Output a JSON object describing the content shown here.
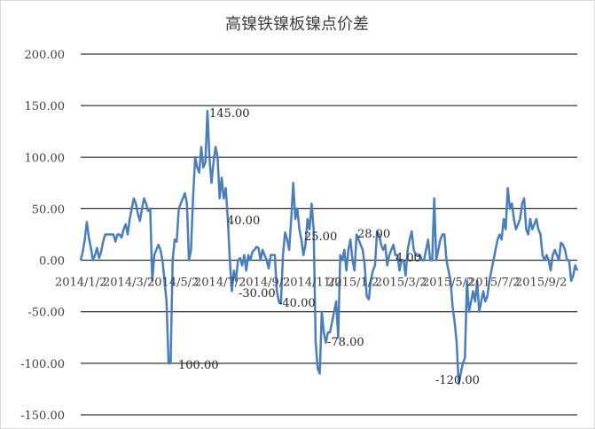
{
  "chart_data": {
    "type": "line",
    "title": "高镍铁镍板镍点价差",
    "xlabel": "",
    "ylabel": "",
    "ylim": [
      -150,
      200
    ],
    "y_ticks": [
      200,
      150,
      100,
      50,
      0,
      -50,
      -100,
      -150
    ],
    "y_tick_labels": [
      "200.00",
      "150.00",
      "100.00",
      "50.00",
      "0.00",
      "-50.00",
      "-100.00",
      "-150.00"
    ],
    "x_tick_labels": [
      "2014/1/2",
      "2014/3/2",
      "2014/5/2",
      "2014/7/2",
      "2014/9/2",
      "2014/11/2",
      "2015/1/2",
      "2015/3/2",
      "2015/5/2",
      "2015/7/2",
      "2015/9/2"
    ],
    "grid": true,
    "line_color": "#4a7ebb",
    "series": [
      {
        "values": [
          0,
          8,
          20,
          37,
          22,
          12,
          0,
          5,
          12,
          2,
          8,
          18,
          25,
          25,
          25,
          25,
          25,
          18,
          25,
          25,
          22,
          30,
          35,
          25,
          40,
          50,
          60,
          55,
          45,
          38,
          50,
          60,
          55,
          48,
          50,
          -20,
          5,
          10,
          15,
          10,
          0,
          -20,
          -40,
          -100,
          -100,
          0,
          20,
          18,
          50,
          55,
          60,
          65,
          55,
          0,
          10,
          60,
          100,
          90,
          85,
          110,
          90,
          95,
          145,
          100,
          75,
          95,
          110,
          100,
          60,
          80,
          60,
          70,
          40,
          0,
          -30,
          -10,
          -20,
          0,
          2,
          -5,
          5,
          -10,
          5,
          0,
          8,
          10,
          13,
          12,
          0,
          10,
          5,
          0,
          -8,
          5,
          5,
          5,
          -30,
          -40,
          -42,
          5,
          27,
          20,
          10,
          40,
          75,
          40,
          50,
          30,
          20,
          5,
          15,
          40,
          30,
          55,
          30,
          -80,
          -105,
          -110,
          -50,
          -70,
          -80,
          -70,
          -70,
          -60,
          -50,
          -40,
          -75,
          5,
          0,
          10,
          -10,
          10,
          20,
          0,
          -10,
          25,
          20,
          15,
          10,
          -5,
          -35,
          -38,
          -20,
          -10,
          -5,
          28,
          25,
          15,
          10,
          15,
          -5,
          5,
          10,
          15,
          5,
          5,
          -10,
          0,
          0,
          -15,
          10,
          20,
          28,
          10,
          5,
          4,
          5,
          0,
          0,
          10,
          20,
          0,
          0,
          60,
          0,
          10,
          20,
          25,
          25,
          0,
          -10,
          -20,
          -45,
          -60,
          -80,
          -120,
          -110,
          -100,
          -95,
          -20,
          -50,
          -40,
          -30,
          -40,
          -20,
          -50,
          -40,
          -30,
          -40,
          -35,
          -20,
          -10,
          0,
          10,
          20,
          25,
          20,
          40,
          30,
          70,
          50,
          55,
          40,
          30,
          35,
          40,
          55,
          60,
          30,
          25,
          40,
          30,
          35,
          40,
          30,
          25,
          5,
          0,
          5,
          0,
          -10,
          5,
          10,
          5,
          0,
          17,
          15,
          10,
          0,
          0,
          -20,
          -15,
          -5,
          -10
        ]
      }
    ],
    "annotations": [
      {
        "text": "145.00"
      },
      {
        "text": "100.00"
      },
      {
        "text": "40.00"
      },
      {
        "text": "-30.00"
      },
      {
        "text": "-40.00"
      },
      {
        "text": "25.00"
      },
      {
        "text": "-78.00"
      },
      {
        "text": "28.00"
      },
      {
        "text": "4.00"
      },
      {
        "text": "-120.00"
      }
    ]
  }
}
